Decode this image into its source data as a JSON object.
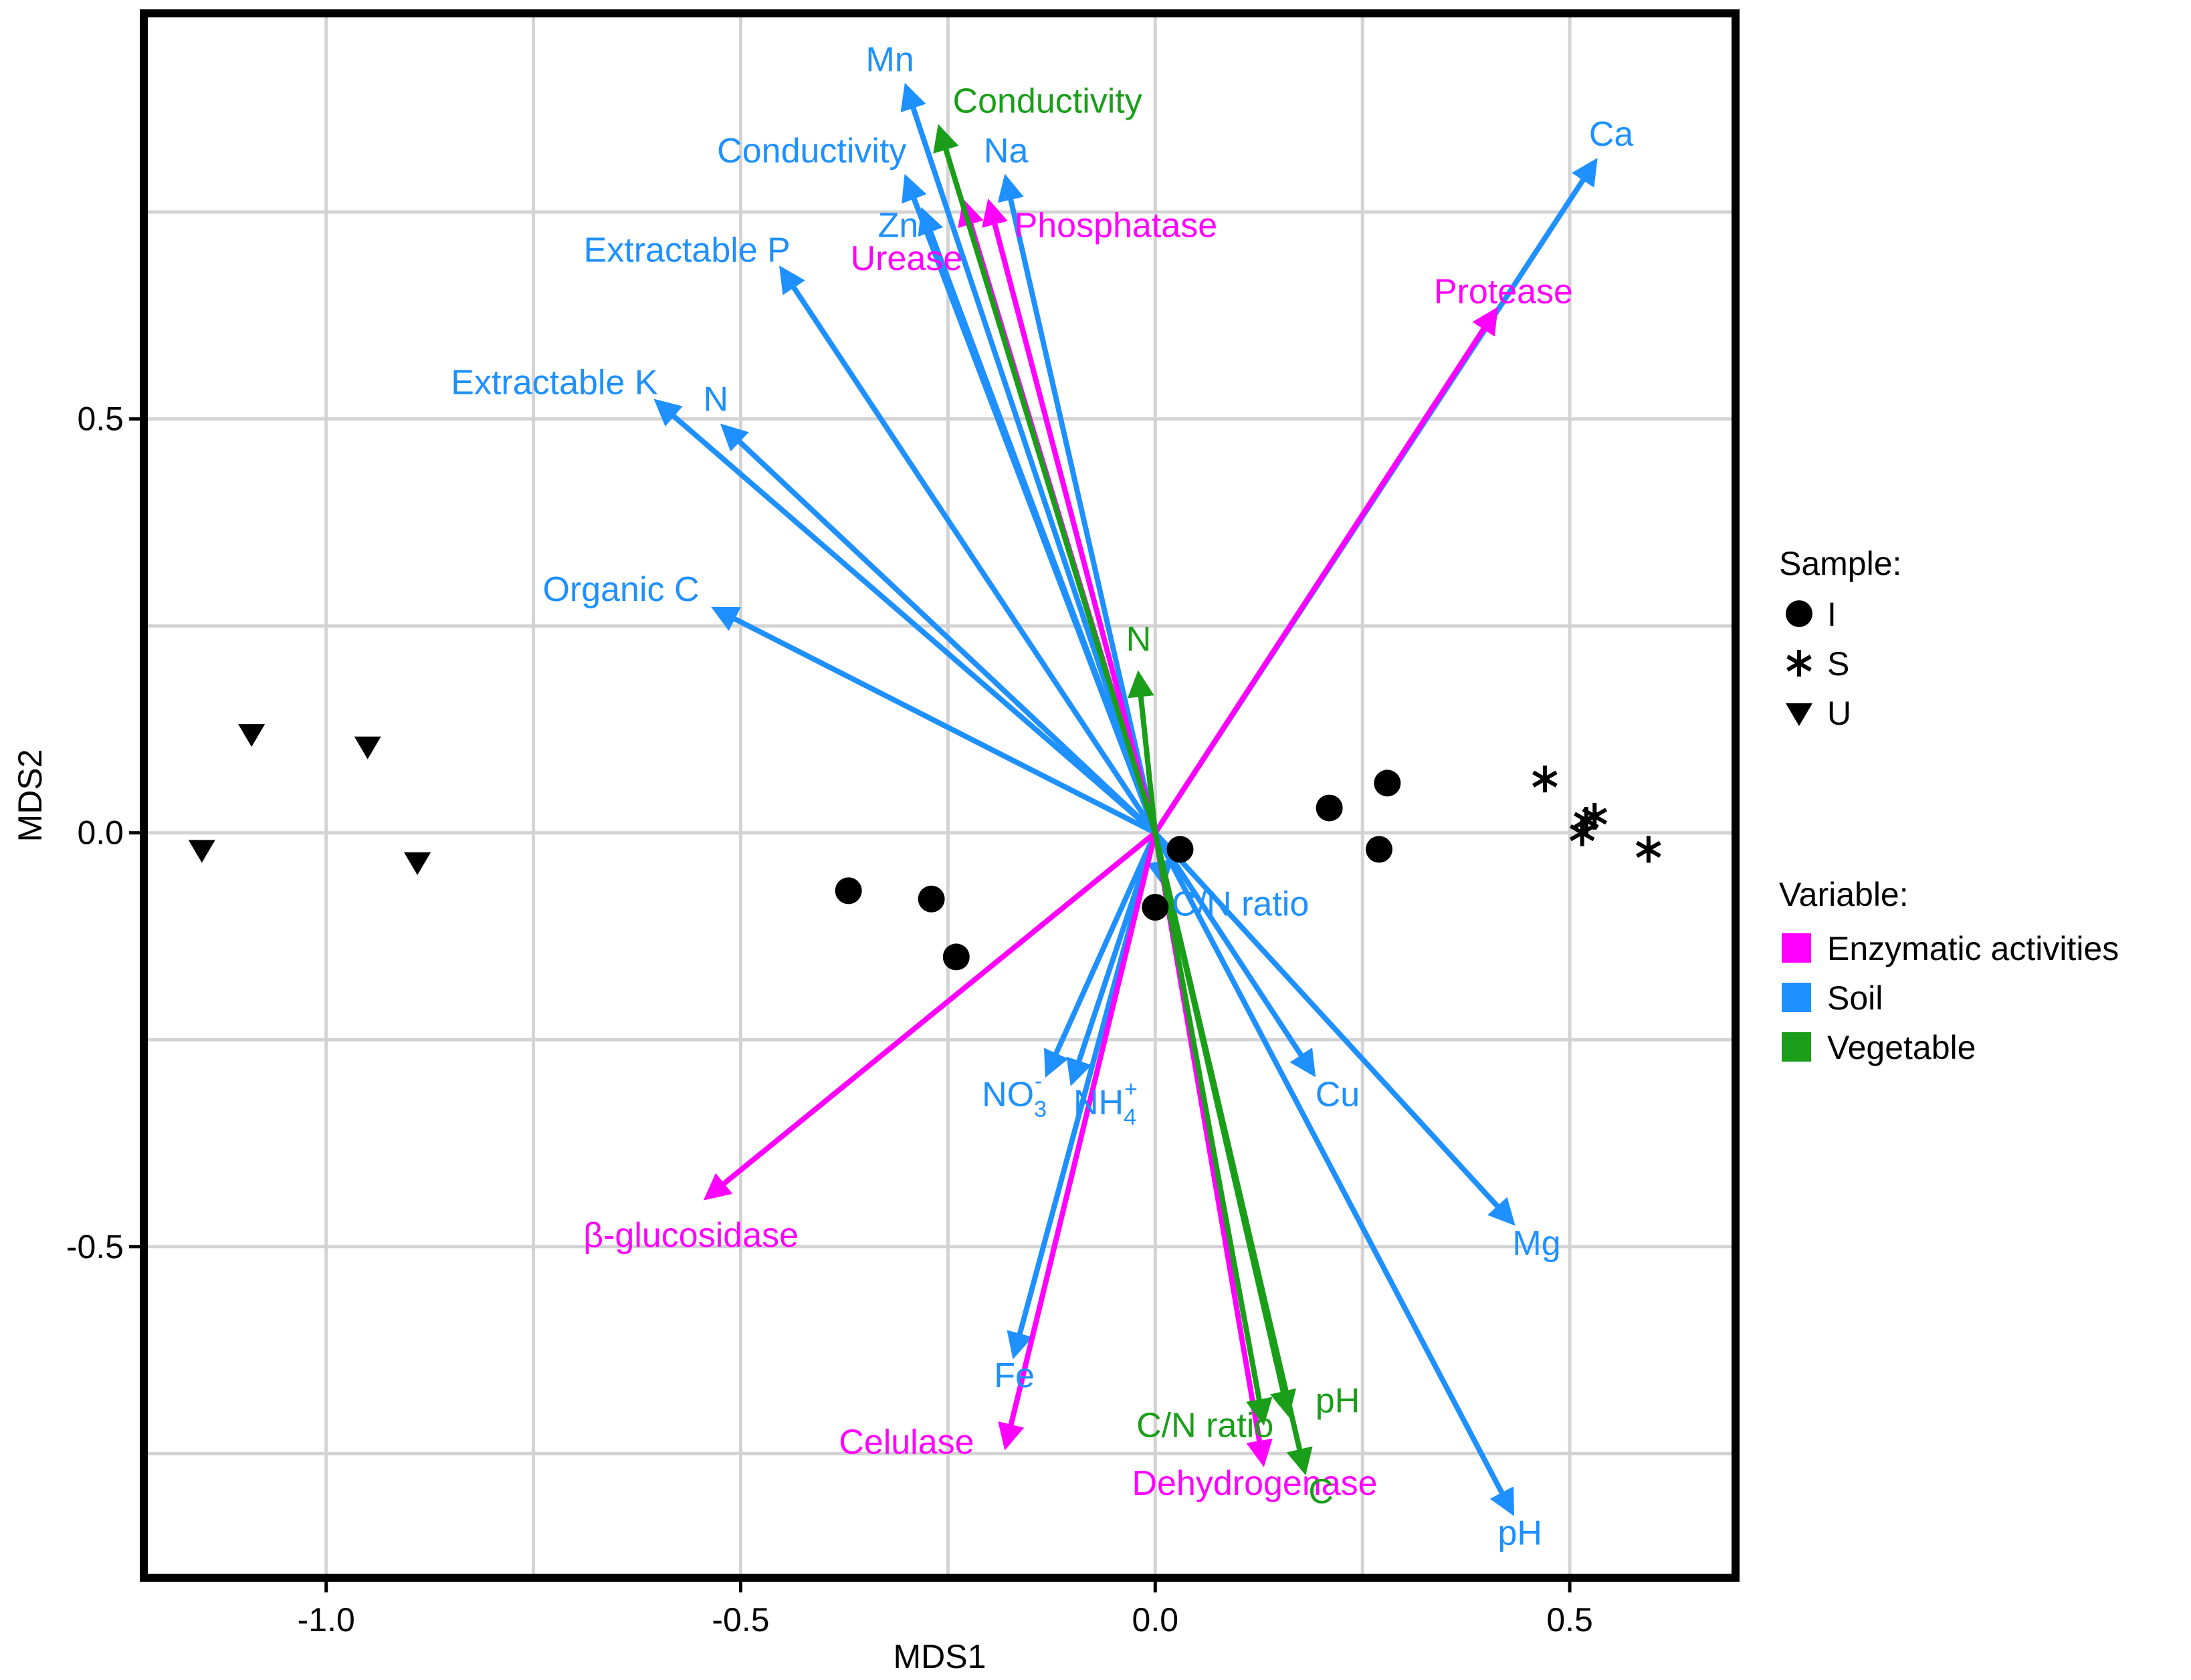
{
  "chart_data": {
    "type": "scatter",
    "subtype": "nmds-biplot",
    "xlabel": "MDS1",
    "ylabel": "MDS2",
    "xlim": [
      -1.22,
      0.7
    ],
    "ylim": [
      -0.9,
      0.99
    ],
    "x_ticks": [
      -1.0,
      -0.5,
      0.0,
      0.5
    ],
    "x_tick_labels": [
      "-1.0",
      "-0.5",
      "0.0",
      "0.5"
    ],
    "y_ticks": [
      -0.5,
      0.0,
      0.5
    ],
    "y_tick_labels": [
      "-0.5",
      "0.0",
      "0.5"
    ],
    "grid": true,
    "colors": {
      "Enzymatic activities": "#FF00FF",
      "Soil": "#1E90FF",
      "Vegetable": "#1A9E1A"
    },
    "samples": [
      {
        "group": "I",
        "x": -0.37,
        "y": -0.07
      },
      {
        "group": "I",
        "x": -0.27,
        "y": -0.08
      },
      {
        "group": "I",
        "x": -0.24,
        "y": -0.15
      },
      {
        "group": "I",
        "x": 0.03,
        "y": -0.02
      },
      {
        "group": "I",
        "x": 0.0,
        "y": -0.09
      },
      {
        "group": "I",
        "x": 0.21,
        "y": 0.03
      },
      {
        "group": "I",
        "x": 0.28,
        "y": 0.06
      },
      {
        "group": "I",
        "x": 0.27,
        "y": -0.02
      },
      {
        "group": "S",
        "x": 0.47,
        "y": 0.065
      },
      {
        "group": "S",
        "x": 0.52,
        "y": 0.015
      },
      {
        "group": "S",
        "x": 0.53,
        "y": 0.02
      },
      {
        "group": "S",
        "x": 0.515,
        "y": 0.0
      },
      {
        "group": "S",
        "x": 0.595,
        "y": -0.02
      },
      {
        "group": "U",
        "x": -1.15,
        "y": -0.02
      },
      {
        "group": "U",
        "x": -1.09,
        "y": 0.12
      },
      {
        "group": "U",
        "x": -0.95,
        "y": 0.105
      },
      {
        "group": "U",
        "x": -0.89,
        "y": -0.035
      }
    ],
    "vectors": [
      {
        "label": "Mn",
        "variable": "Soil",
        "x": -0.3,
        "y": 0.9,
        "lx": -0.32,
        "ly": 0.92,
        "anchor": "middle"
      },
      {
        "label": "Conductivity",
        "variable": "Soil",
        "x": -0.3,
        "y": 0.79,
        "lx": -0.3,
        "ly": 0.81,
        "anchor": "end"
      },
      {
        "label": "Zn",
        "variable": "Soil",
        "x": -0.28,
        "y": 0.75,
        "lx": -0.31,
        "ly": 0.72,
        "anchor": "middle"
      },
      {
        "label": "Na",
        "variable": "Soil",
        "x": -0.18,
        "y": 0.79,
        "lx": -0.18,
        "ly": 0.81,
        "anchor": "middle"
      },
      {
        "label": "Extractable P",
        "variable": "Soil",
        "x": -0.45,
        "y": 0.68,
        "lx": -0.44,
        "ly": 0.69,
        "anchor": "end"
      },
      {
        "label": "Extractable K",
        "variable": "Soil",
        "x": -0.6,
        "y": 0.52,
        "lx": -0.6,
        "ly": 0.53,
        "anchor": "end"
      },
      {
        "label": "N",
        "variable": "Soil",
        "x": -0.52,
        "y": 0.49,
        "lx": -0.53,
        "ly": 0.51,
        "anchor": "middle"
      },
      {
        "label": "Organic C",
        "variable": "Soil",
        "x": -0.53,
        "y": 0.27,
        "lx": -0.55,
        "ly": 0.28,
        "anchor": "end"
      },
      {
        "label": "Ca",
        "variable": "Soil",
        "x": 0.53,
        "y": 0.81,
        "lx": 0.55,
        "ly": 0.83,
        "anchor": "middle"
      },
      {
        "label": "C/N ratio",
        "variable": "Soil",
        "x": 0.01,
        "y": -0.06,
        "lx": 0.02,
        "ly": -0.1,
        "anchor": "start"
      },
      {
        "label": "Cu",
        "variable": "Soil",
        "x": 0.19,
        "y": -0.29,
        "lx": 0.22,
        "ly": -0.33,
        "anchor": "middle"
      },
      {
        "label": "Mg",
        "variable": "Soil",
        "x": 0.43,
        "y": -0.47,
        "lx": 0.46,
        "ly": -0.51,
        "anchor": "middle"
      },
      {
        "label": "pH",
        "variable": "Soil",
        "x": 0.43,
        "y": -0.82,
        "lx": 0.44,
        "ly": -0.86,
        "anchor": "middle"
      },
      {
        "label": "NO3-",
        "display": "NO",
        "sub": "3",
        "sup": "-",
        "variable": "Soil",
        "x": -0.13,
        "y": -0.29,
        "lx": -0.17,
        "ly": -0.33,
        "anchor": "middle"
      },
      {
        "label": "NH4+",
        "display": "NH",
        "sub": "4",
        "sup": "+",
        "variable": "Soil",
        "x": -0.1,
        "y": -0.3,
        "lx": -0.06,
        "ly": -0.34,
        "anchor": "middle"
      },
      {
        "label": "Fe",
        "variable": "Soil",
        "x": -0.17,
        "y": -0.63,
        "lx": -0.17,
        "ly": -0.67,
        "anchor": "middle"
      },
      {
        "label": "Phosphatase",
        "variable": "Enzymatic activities",
        "x": -0.2,
        "y": 0.76,
        "lx": -0.17,
        "ly": 0.72,
        "anchor": "start"
      },
      {
        "label": "Urease",
        "variable": "Enzymatic activities",
        "x": -0.23,
        "y": 0.76,
        "lx": -0.3,
        "ly": 0.68,
        "anchor": "middle"
      },
      {
        "label": "Protease",
        "variable": "Enzymatic activities",
        "x": 0.41,
        "y": 0.63,
        "lx": 0.42,
        "ly": 0.64,
        "anchor": "middle"
      },
      {
        "label": "β-glucosidase",
        "variable": "Enzymatic activities",
        "x": -0.54,
        "y": -0.44,
        "lx": -0.56,
        "ly": -0.5,
        "anchor": "middle"
      },
      {
        "label": "Celulase",
        "variable": "Enzymatic activities",
        "x": -0.18,
        "y": -0.74,
        "lx": -0.3,
        "ly": -0.75,
        "anchor": "middle"
      },
      {
        "label": "Dehydrogenase",
        "variable": "Enzymatic activities",
        "x": 0.13,
        "y": -0.76,
        "lx": 0.12,
        "ly": -0.8,
        "anchor": "middle"
      },
      {
        "label": "Conductivity",
        "variable": "Vegetable",
        "x": -0.26,
        "y": 0.85,
        "lx": -0.13,
        "ly": 0.87,
        "anchor": "middle"
      },
      {
        "label": "N",
        "variable": "Vegetable",
        "x": -0.02,
        "y": 0.19,
        "lx": -0.02,
        "ly": 0.22,
        "anchor": "middle"
      },
      {
        "label": "pH",
        "variable": "Vegetable",
        "x": 0.16,
        "y": -0.7,
        "lx": 0.22,
        "ly": -0.7,
        "anchor": "middle"
      },
      {
        "label": "C/N ratio",
        "variable": "Vegetable",
        "x": 0.13,
        "y": -0.71,
        "lx": 0.06,
        "ly": -0.73,
        "anchor": "middle"
      },
      {
        "label": "C",
        "variable": "Vegetable",
        "x": 0.18,
        "y": -0.77,
        "lx": 0.2,
        "ly": -0.81,
        "anchor": "middle"
      }
    ],
    "legend": {
      "sample_title": "Sample:",
      "sample_items": [
        {
          "name": "I",
          "symbol": "circle"
        },
        {
          "name": "S",
          "symbol": "asterisk"
        },
        {
          "name": "U",
          "symbol": "triangle-down"
        }
      ],
      "variable_title": "Variable:",
      "variable_items": [
        "Enzymatic activities",
        "Soil",
        "Vegetable"
      ],
      "placement": "right"
    }
  }
}
